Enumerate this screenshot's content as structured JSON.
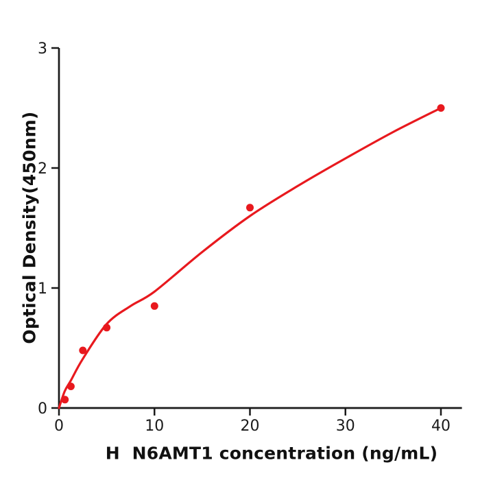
{
  "figure": {
    "background": "#ffffff"
  },
  "chart_data": {
    "type": "scatter",
    "title": "",
    "xlabel": "H  N6AMT1 concentration (ng/mL)",
    "ylabel": "Optical Density(450nm)",
    "xlim": [
      0,
      42.2
    ],
    "ylim": [
      0,
      3
    ],
    "xticks": [
      0,
      10,
      20,
      30,
      40
    ],
    "yticks": [
      0,
      1,
      2,
      3
    ],
    "grid": false,
    "legend_position": "none",
    "axis_color": "#1a1a1a",
    "tick_label_color": "#1a1a1a",
    "point_color": "#e8191e",
    "curve_color": "#e8191e",
    "series": [
      {
        "name": "standard-points",
        "kind": "scatter",
        "color": "#e8191e",
        "marker_radius": 5.5,
        "points": [
          {
            "x": 0.625,
            "y": 0.07
          },
          {
            "x": 1.25,
            "y": 0.18
          },
          {
            "x": 2.5,
            "y": 0.48
          },
          {
            "x": 5,
            "y": 0.67
          },
          {
            "x": 10,
            "y": 0.85
          },
          {
            "x": 20,
            "y": 1.67
          },
          {
            "x": 40,
            "y": 2.5
          }
        ]
      },
      {
        "name": "fit-curve",
        "kind": "line",
        "color": "#e8191e",
        "stroke_width": 3.2,
        "points": [
          {
            "x": 0,
            "y": 0
          },
          {
            "x": 0.6,
            "y": 0.14
          },
          {
            "x": 1.25,
            "y": 0.23
          },
          {
            "x": 2.5,
            "y": 0.41
          },
          {
            "x": 5,
            "y": 0.7
          },
          {
            "x": 7.5,
            "y": 0.85
          },
          {
            "x": 10,
            "y": 0.97
          },
          {
            "x": 15,
            "y": 1.3
          },
          {
            "x": 20,
            "y": 1.6
          },
          {
            "x": 25,
            "y": 1.85
          },
          {
            "x": 30,
            "y": 2.08
          },
          {
            "x": 35,
            "y": 2.3
          },
          {
            "x": 40,
            "y": 2.5
          }
        ]
      }
    ]
  }
}
